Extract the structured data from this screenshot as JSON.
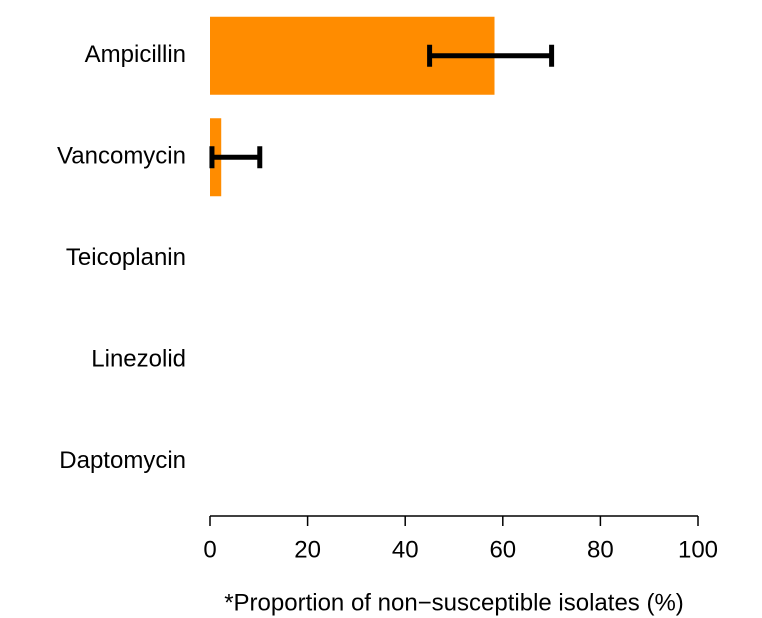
{
  "chart_data": {
    "type": "bar",
    "orientation": "horizontal",
    "xlabel": "*Proportion of non−susceptible isolates (%)",
    "categories": [
      "Ampicillin",
      "Vancomycin",
      "Teicoplanin",
      "Linezolid",
      "Daptomycin"
    ],
    "values": [
      58.3,
      2.3,
      0,
      0,
      0
    ],
    "ci_lower": [
      45,
      0.4,
      null,
      null,
      null
    ],
    "ci_upper": [
      70,
      10.2,
      null,
      null,
      null
    ],
    "color": "#ff8c00",
    "xlim": [
      0,
      100
    ],
    "xticks": [
      0,
      20,
      40,
      60,
      80,
      100
    ],
    "grid": false
  }
}
